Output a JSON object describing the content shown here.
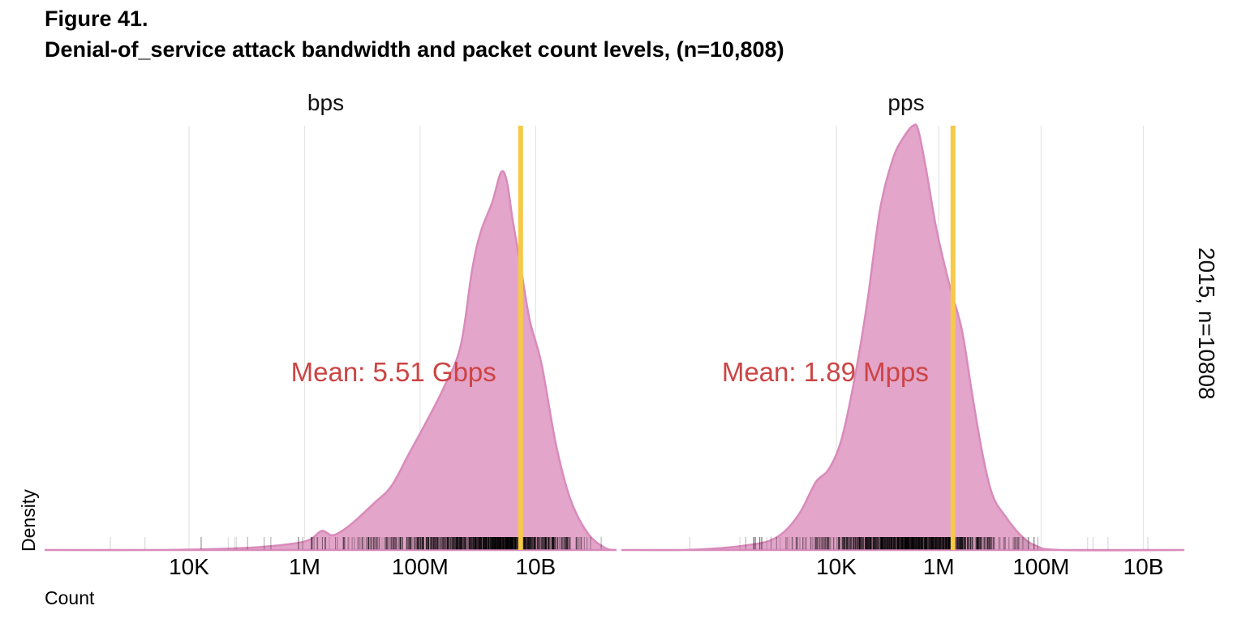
{
  "figure": {
    "label": "Figure 41.",
    "title": "Denial-of_service attack bandwidth and packet count levels, (n=10,808)"
  },
  "colors": {
    "density_fill": "#e1a0c6",
    "density_stroke": "#d98bbb",
    "mean_line": "#f7c948",
    "mean_text": "#cc4444",
    "grid": "#e4e4e4",
    "rug": "#000000"
  },
  "chart_data": {
    "type": "area",
    "subtype": "density (log10 x-axis, faceted)",
    "xlabel": "Count",
    "ylabel": "Density",
    "facet_label": "2015, n=10808",
    "grid": true,
    "panels": [
      {
        "id": "bps",
        "title": "bps",
        "xlim_log10": [
          1.5,
          11.4
        ],
        "ticks": [
          {
            "value_log10": 4,
            "label": "10K"
          },
          {
            "value_log10": 6,
            "label": "1M"
          },
          {
            "value_log10": 8,
            "label": "100M"
          },
          {
            "value_log10": 10,
            "label": "10B"
          }
        ],
        "mean_log10": 9.74,
        "mean_label": "Mean: 5.51 Gbps",
        "density": [
          [
            1.5,
            0.0
          ],
          [
            3.5,
            0.0
          ],
          [
            5.0,
            0.005
          ],
          [
            5.8,
            0.015
          ],
          [
            6.1,
            0.025
          ],
          [
            6.3,
            0.045
          ],
          [
            6.5,
            0.035
          ],
          [
            6.8,
            0.06
          ],
          [
            7.2,
            0.11
          ],
          [
            7.5,
            0.15
          ],
          [
            7.8,
            0.225
          ],
          [
            8.1,
            0.3
          ],
          [
            8.4,
            0.38
          ],
          [
            8.7,
            0.48
          ],
          [
            8.9,
            0.66
          ],
          [
            9.05,
            0.75
          ],
          [
            9.25,
            0.82
          ],
          [
            9.4,
            0.89
          ],
          [
            9.5,
            0.87
          ],
          [
            9.6,
            0.78
          ],
          [
            9.75,
            0.66
          ],
          [
            9.9,
            0.54
          ],
          [
            10.1,
            0.44
          ],
          [
            10.35,
            0.25
          ],
          [
            10.6,
            0.12
          ],
          [
            10.9,
            0.04
          ],
          [
            11.2,
            0.005
          ],
          [
            11.4,
            0.0
          ]
        ]
      },
      {
        "id": "pps",
        "title": "pps",
        "xlim_log10": [
          -0.2,
          10.8
        ],
        "ticks": [
          {
            "value_log10": 4,
            "label": "10K"
          },
          {
            "value_log10": 6,
            "label": "1M"
          },
          {
            "value_log10": 8,
            "label": "100M"
          },
          {
            "value_log10": 10,
            "label": "10B"
          }
        ],
        "mean_log10": 6.28,
        "mean_label": "Mean: 1.89 Mpps",
        "density": [
          [
            -0.2,
            0.0
          ],
          [
            1.0,
            0.0
          ],
          [
            1.7,
            0.004
          ],
          [
            2.3,
            0.012
          ],
          [
            2.7,
            0.022
          ],
          [
            3.0,
            0.045
          ],
          [
            3.3,
            0.09
          ],
          [
            3.6,
            0.16
          ],
          [
            3.85,
            0.19
          ],
          [
            4.1,
            0.26
          ],
          [
            4.35,
            0.4
          ],
          [
            4.6,
            0.58
          ],
          [
            4.85,
            0.8
          ],
          [
            5.1,
            0.92
          ],
          [
            5.3,
            0.97
          ],
          [
            5.5,
            1.0
          ],
          [
            5.6,
            0.99
          ],
          [
            5.75,
            0.9
          ],
          [
            5.95,
            0.76
          ],
          [
            6.2,
            0.63
          ],
          [
            6.45,
            0.52
          ],
          [
            6.65,
            0.37
          ],
          [
            6.85,
            0.23
          ],
          [
            7.05,
            0.13
          ],
          [
            7.3,
            0.08
          ],
          [
            7.6,
            0.035
          ],
          [
            7.9,
            0.01
          ],
          [
            8.4,
            0.0
          ],
          [
            10.8,
            0.0
          ]
        ]
      }
    ]
  }
}
